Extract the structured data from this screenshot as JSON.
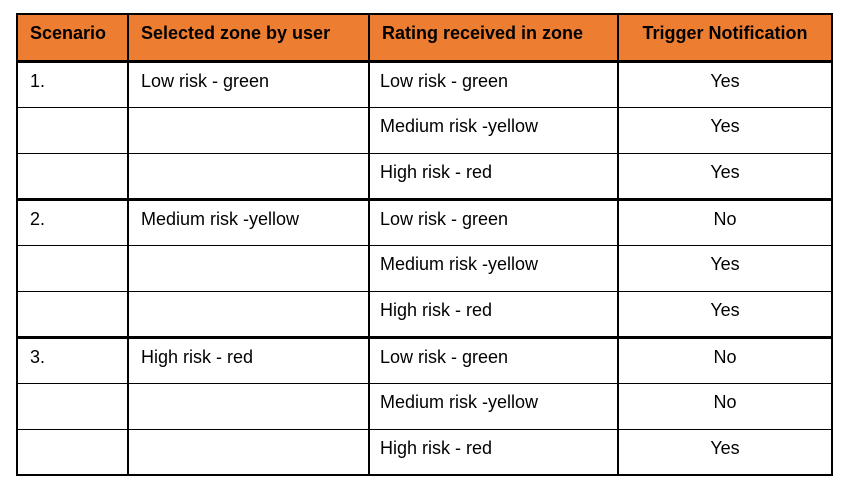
{
  "table": {
    "header_bg": "#ED7D31",
    "border_color": "#000000",
    "text_color": "#000000",
    "headers": {
      "scenario": "Scenario",
      "selected_zone": "Selected zone by user",
      "rating": "Rating received in zone",
      "trigger": "Trigger Notification"
    },
    "rows": [
      {
        "scenario": "1.",
        "selected_zone": "Low risk - green",
        "rating": "Low risk - green",
        "trigger": "Yes"
      },
      {
        "scenario": "",
        "selected_zone": "",
        "rating": "Medium risk -yellow",
        "trigger": "Yes"
      },
      {
        "scenario": "",
        "selected_zone": "",
        "rating": "High risk - red",
        "trigger": "Yes"
      },
      {
        "scenario": "2.",
        "selected_zone": "Medium risk -yellow",
        "rating": "Low risk - green",
        "trigger": "No"
      },
      {
        "scenario": "",
        "selected_zone": "",
        "rating": "Medium risk -yellow",
        "trigger": "Yes"
      },
      {
        "scenario": "",
        "selected_zone": "",
        "rating": "High risk - red",
        "trigger": "Yes"
      },
      {
        "scenario": "3.",
        "selected_zone": "High risk - red",
        "rating": "Low risk - green",
        "trigger": "No"
      },
      {
        "scenario": "",
        "selected_zone": "",
        "rating": "Medium risk -yellow",
        "trigger": "No"
      },
      {
        "scenario": "",
        "selected_zone": "",
        "rating": "High risk - red",
        "trigger": "Yes"
      }
    ]
  }
}
